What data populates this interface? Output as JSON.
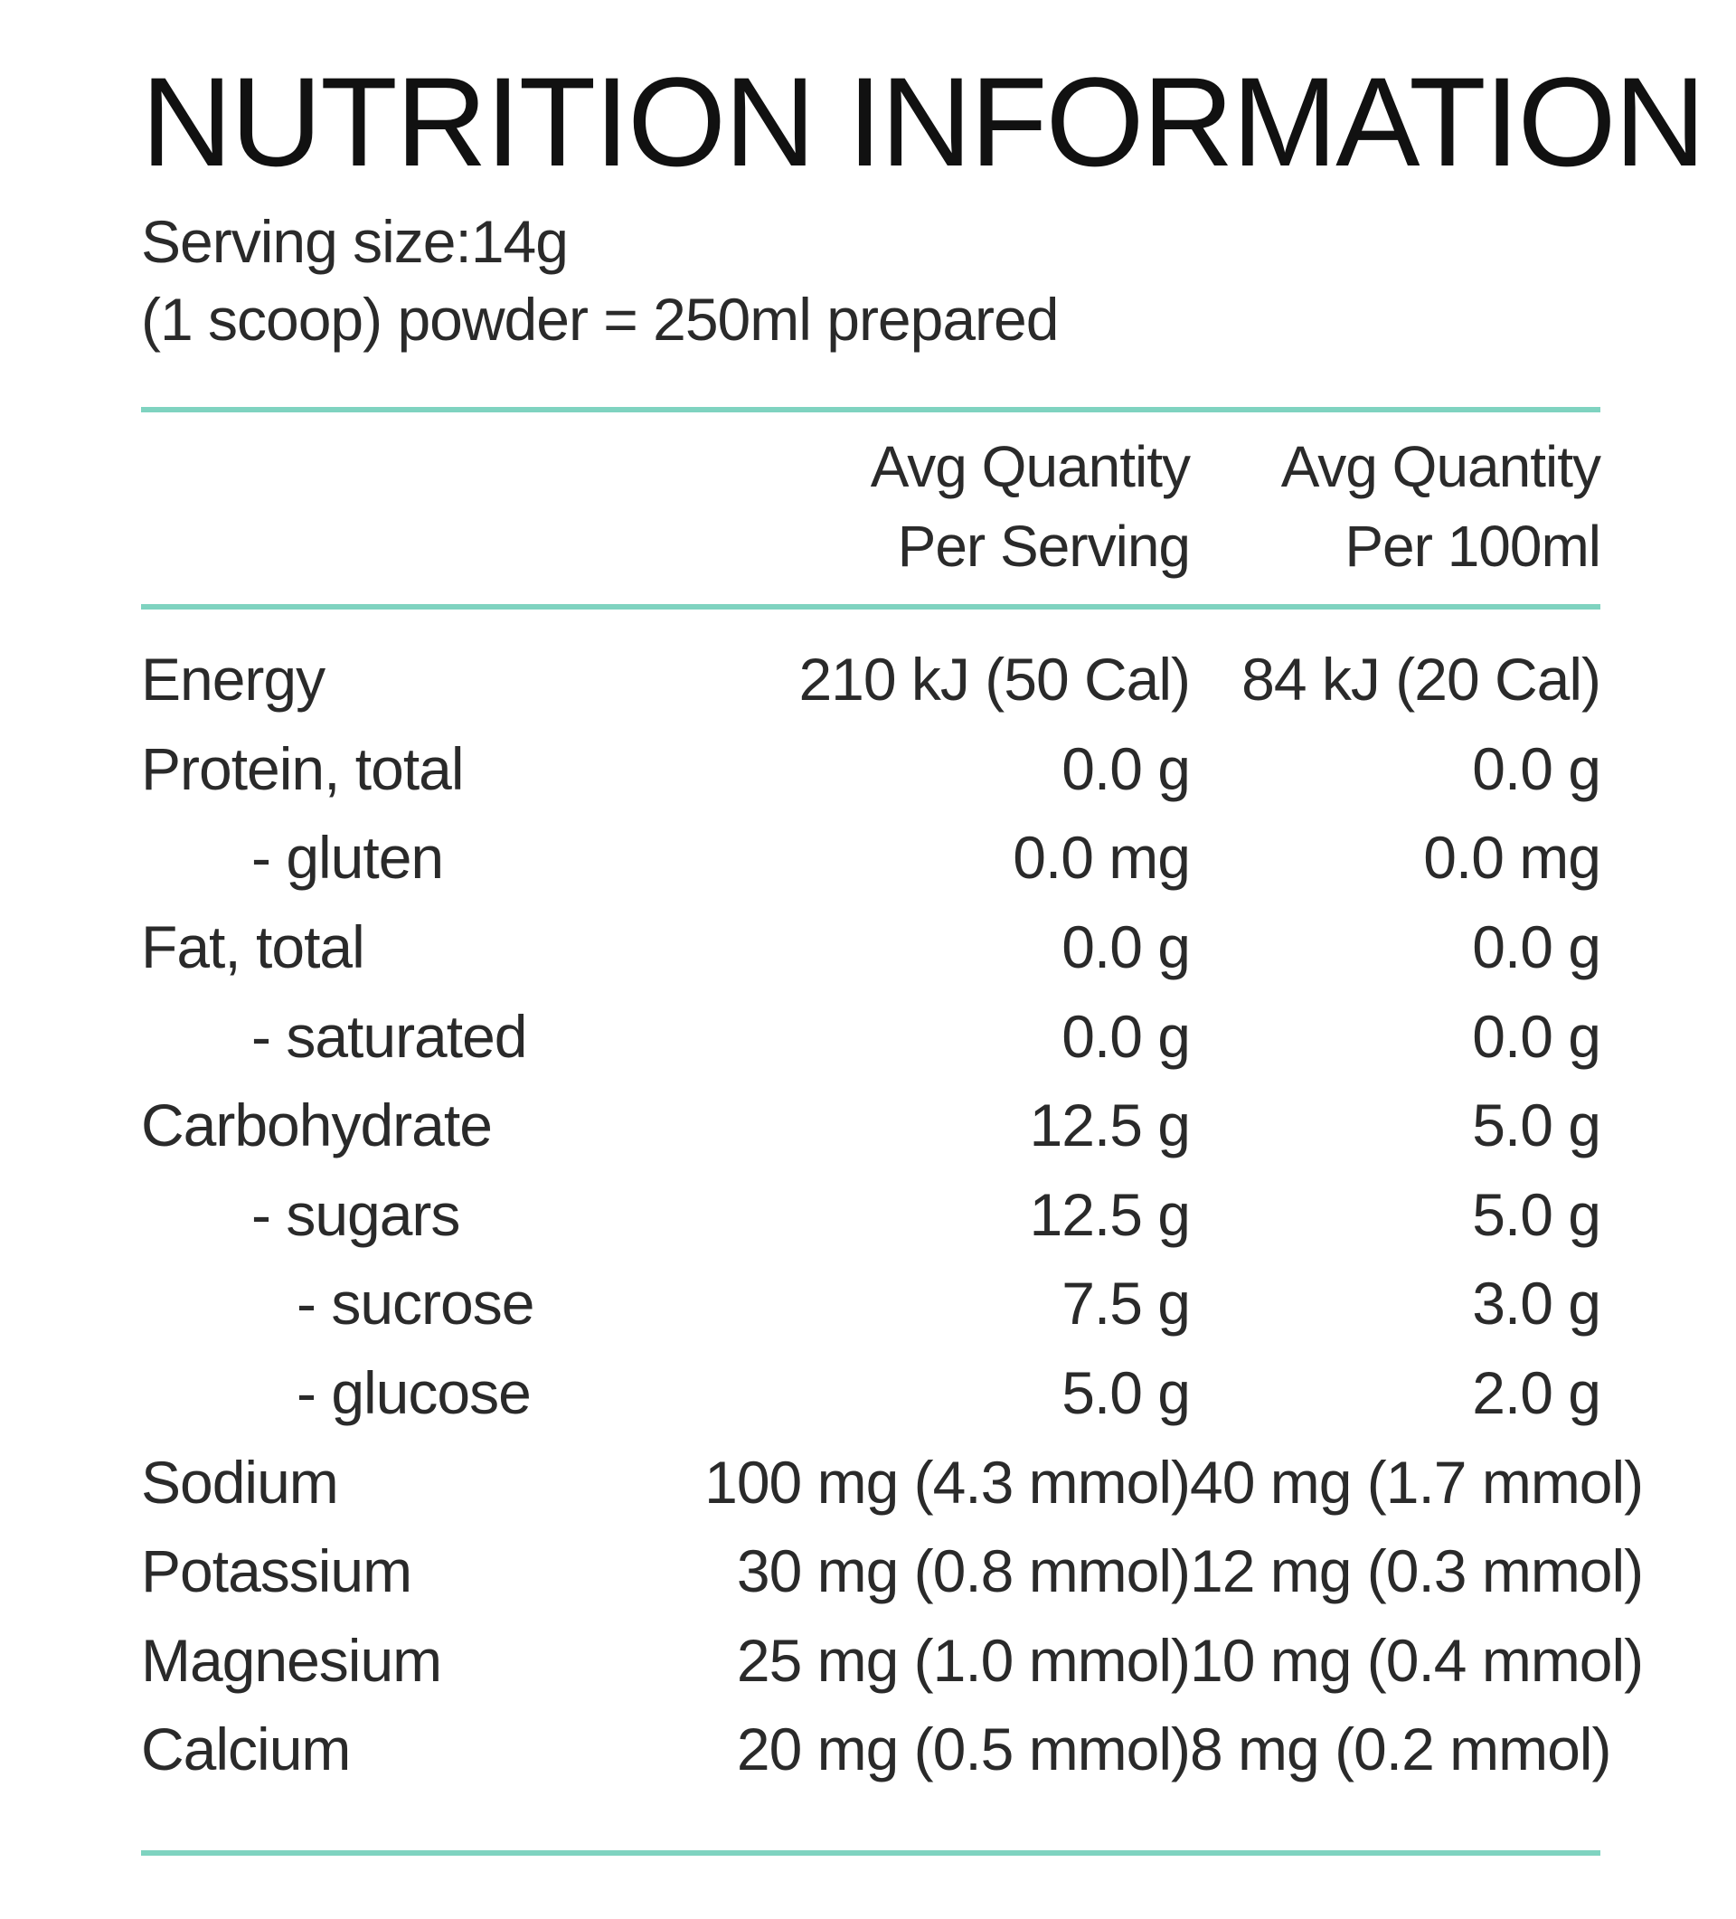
{
  "panel": {
    "title": "NUTRITION INFORMATION",
    "serving_size": "Serving size:14g",
    "serving_note": "(1 scoop) powder = 250ml prepared"
  },
  "table": {
    "header": {
      "per_serving_line1": "Avg Quantity",
      "per_serving_line2": "Per Serving",
      "per_100ml_line1": "Avg Quantity",
      "per_100ml_line2": "Per 100ml"
    },
    "rows": [
      {
        "label": "Energy",
        "per_serving": "210 kJ (50 Cal)",
        "per_100ml": "84 kJ (20 Cal)"
      },
      {
        "label": "Protein, total",
        "per_serving": "0.0 g",
        "per_100ml": "0.0 g"
      },
      {
        "label": "- gluten",
        "per_serving": "0.0 mg",
        "per_100ml": "0.0 mg"
      },
      {
        "label": "Fat, total",
        "per_serving": "0.0 g",
        "per_100ml": "0.0 g"
      },
      {
        "label": "- saturated",
        "per_serving": "0.0 g",
        "per_100ml": "0.0 g"
      },
      {
        "label": "Carbohydrate",
        "per_serving": "12.5 g",
        "per_100ml": "5.0 g"
      },
      {
        "label": "- sugars",
        "per_serving": "12.5 g",
        "per_100ml": "5.0 g"
      },
      {
        "label": "- sucrose",
        "per_serving": "7.5 g",
        "per_100ml": "3.0 g"
      },
      {
        "label": "- glucose",
        "per_serving": "5.0 g",
        "per_100ml": "2.0 g"
      },
      {
        "label": "Sodium",
        "per_serving": "100 mg (4.3 mmol)",
        "per_100ml": "40 mg (1.7 mmol)"
      },
      {
        "label": "Potassium",
        "per_serving": "30 mg (0.8 mmol)",
        "per_100ml": "12 mg (0.3 mmol)"
      },
      {
        "label": "Magnesium",
        "per_serving": "25 mg (1.0 mmol)",
        "per_100ml": "10 mg (0.4 mmol)"
      },
      {
        "label": "Calcium",
        "per_serving": "20 mg (0.5 mmol)",
        "per_100ml": "8 mg (0.2 mmol)"
      }
    ]
  },
  "colors": {
    "rule": "#7fd3c0",
    "text": "#2a2a2a",
    "background": "#ffffff"
  }
}
